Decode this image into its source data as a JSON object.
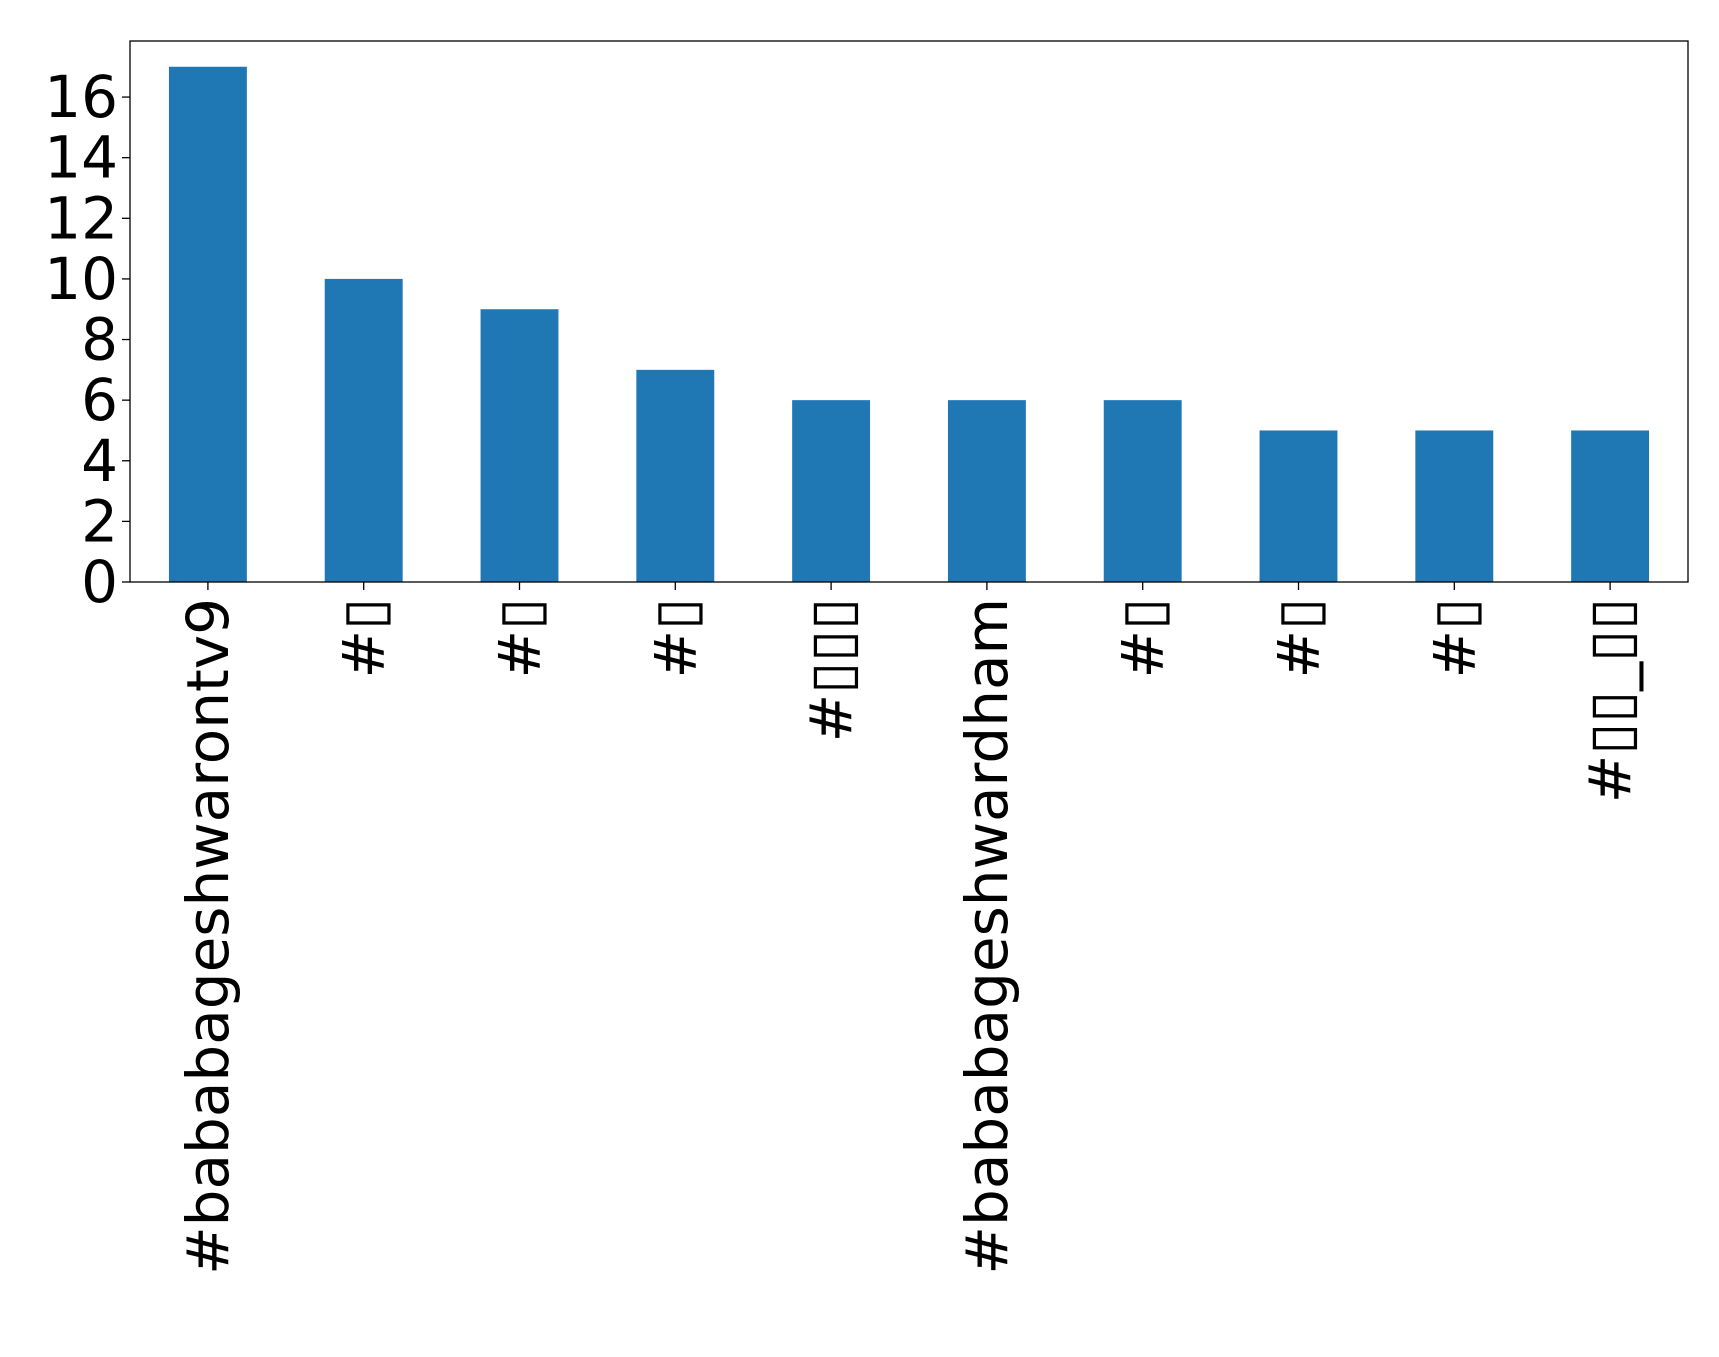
{
  "chart_data": {
    "type": "bar",
    "title": "",
    "xlabel": "",
    "ylabel": "",
    "categories": [
      "#bababageshwarontv9",
      "#▯",
      "#▯",
      "#▯",
      "#▯▯▯",
      "#bababageshwardham",
      "#▯",
      "#▯",
      "#▯",
      "#▯▯_▯▯"
    ],
    "values": [
      17,
      10,
      9,
      7,
      6,
      6,
      6,
      5,
      5,
      5
    ],
    "ylim": [
      0,
      17.85
    ],
    "yticks": [
      0,
      2,
      4,
      6,
      8,
      10,
      12,
      14,
      16
    ],
    "bar_color": "#1f77b4",
    "grid": false,
    "legend": "none"
  }
}
